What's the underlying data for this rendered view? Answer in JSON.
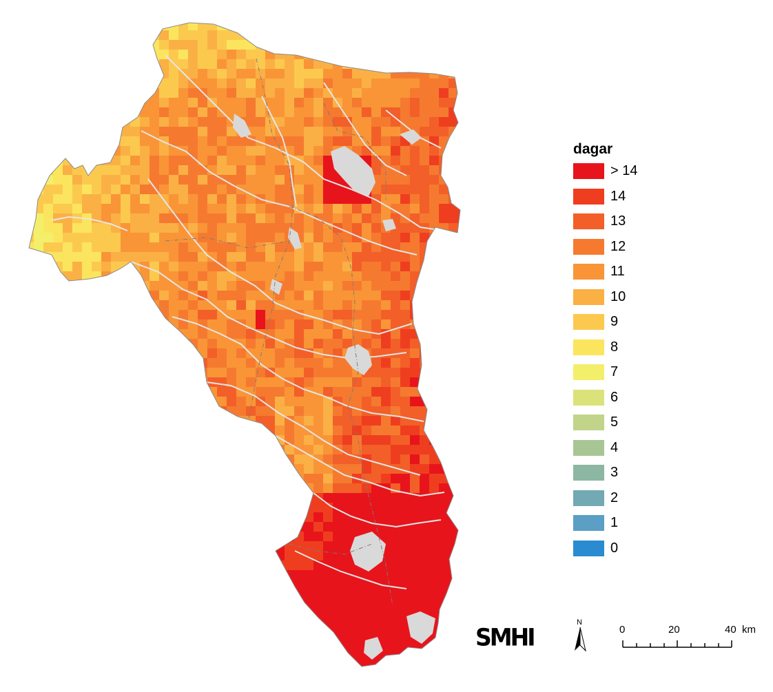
{
  "legend": {
    "title": "dagar",
    "classes": [
      {
        "label": "> 14",
        "color": "#e8141b"
      },
      {
        "label": "14",
        "color": "#ef3e1f"
      },
      {
        "label": "13",
        "color": "#f35f28"
      },
      {
        "label": "12",
        "color": "#f57a30"
      },
      {
        "label": "11",
        "color": "#f99537"
      },
      {
        "label": "10",
        "color": "#fbb045"
      },
      {
        "label": "9",
        "color": "#fcc94f"
      },
      {
        "label": "8",
        "color": "#fce55e"
      },
      {
        "label": "7",
        "color": "#f3ef6a"
      },
      {
        "label": "6",
        "color": "#dce27a"
      },
      {
        "label": "5",
        "color": "#c2d38a"
      },
      {
        "label": "4",
        "color": "#a7c694"
      },
      {
        "label": "3",
        "color": "#8cb7a2"
      },
      {
        "label": "2",
        "color": "#72a9b3"
      },
      {
        "label": "1",
        "color": "#5b9fc4"
      },
      {
        "label": "0",
        "color": "#2a8bd0"
      }
    ]
  },
  "logo": "SMHI",
  "north_arrow": "N",
  "scale_bar": {
    "ticks": [
      "0",
      "20",
      "40"
    ],
    "unit": "km"
  },
  "colors": {
    "water": "#d9d9d9",
    "river": "#e6e6e6",
    "border": "#7a7a7a"
  }
}
